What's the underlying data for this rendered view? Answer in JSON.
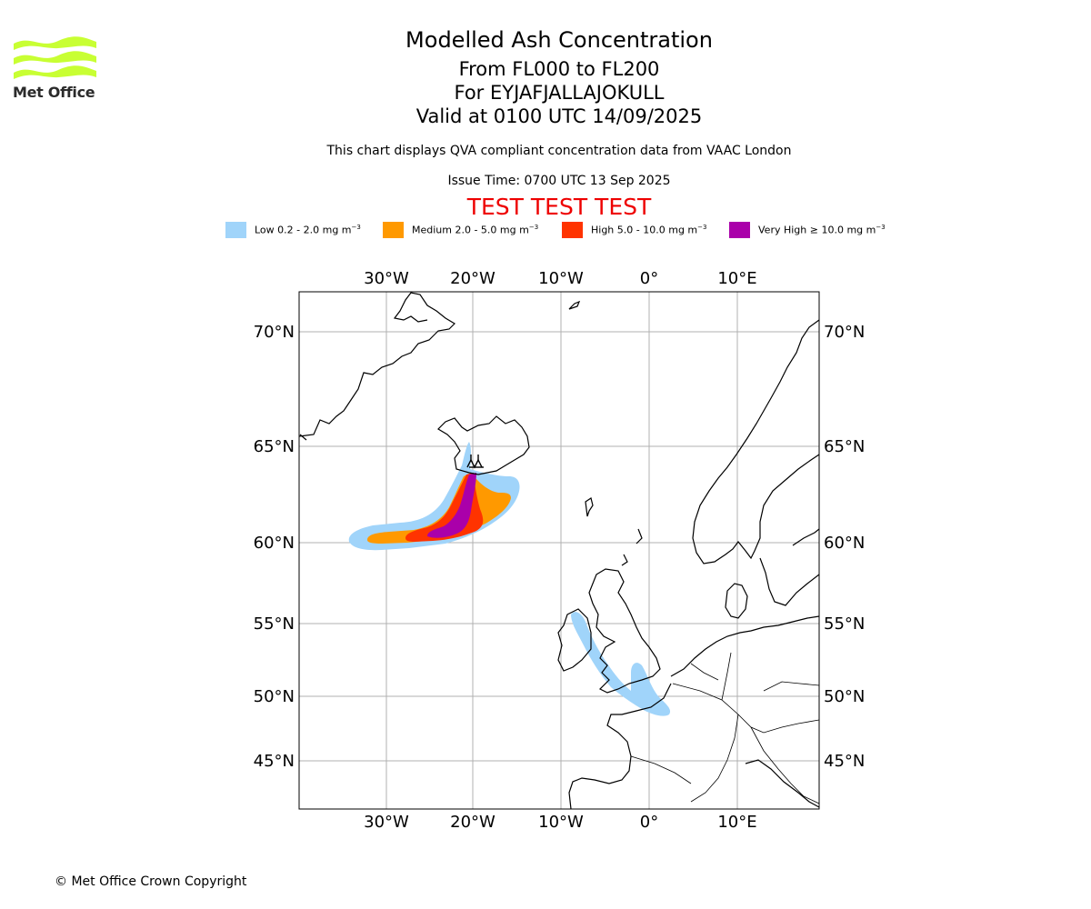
{
  "header": {
    "logo_text": "Met Office",
    "title": "Modelled Ash Concentration",
    "levels": "From FL000 to FL200",
    "volcano": "For EYJAFJALLAJOKULL",
    "valid": "Valid at 0100 UTC 14/09/2025",
    "description": "This chart displays QVA compliant concentration data from VAAC London",
    "issue_time": "Issue Time: 0700 UTC 13 Sep 2025",
    "test_banner": "TEST TEST TEST"
  },
  "legend": [
    {
      "label": "Low 0.2 - 2.0 mg m",
      "color": "#a0d4fa"
    },
    {
      "label": "Medium 2.0 - 5.0 mg m",
      "color": "#ff9900"
    },
    {
      "label": "High 5.0 - 10.0 mg m",
      "color": "#ff3300"
    },
    {
      "label": "Very High ≥ 10.0 mg m",
      "color": "#aa00aa"
    }
  ],
  "legend_unit_exponent": "−3",
  "map": {
    "lon_ticks": [
      "30°W",
      "20°W",
      "10°W",
      "0°",
      "10°E"
    ],
    "lat_ticks": [
      "70°N",
      "65°N",
      "60°N",
      "55°N",
      "50°N",
      "45°N"
    ],
    "volcano_marker": "volcano-symbol",
    "grid": true,
    "colors": {
      "coastline": "#000000",
      "grid": "#b0b0b0",
      "frame": "#000000"
    }
  },
  "footer": {
    "copyright": "© Met Office Crown Copyright"
  }
}
